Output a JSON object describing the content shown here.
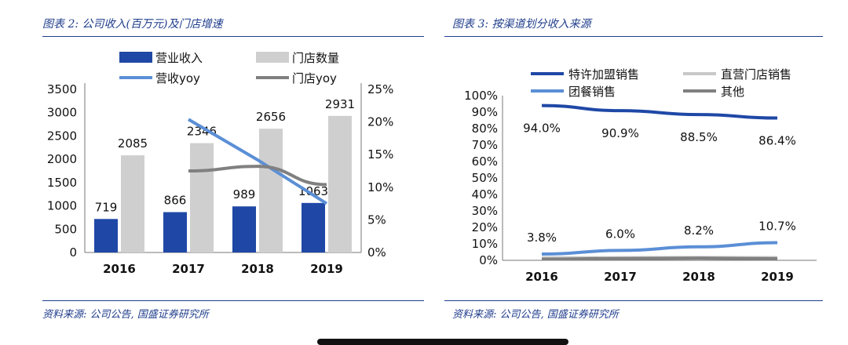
{
  "left": {
    "title": "图表 2:  公司收入(百万元)及门店增速",
    "source": "资料来源:  公司公告,  国盛证券研究所"
  },
  "right": {
    "title": "图表 3:  按渠道划分收入来源",
    "source": "资料来源:  公司公告,  国盛证券研究所"
  },
  "chart_data": [
    {
      "type": "bar",
      "title": "公司收入(百万元)及门店增速",
      "categories": [
        "2016",
        "2017",
        "2018",
        "2019"
      ],
      "series": [
        {
          "name": "营业收入",
          "kind": "bar",
          "axis": "left",
          "color": "#1f48a6",
          "values": [
            719,
            866,
            989,
            1063
          ],
          "labels": [
            "719",
            "866",
            "989",
            "1063"
          ]
        },
        {
          "name": "门店数量",
          "kind": "bar",
          "axis": "left",
          "color": "#cfcfcf",
          "values": [
            2085,
            2346,
            2656,
            2931
          ],
          "labels": [
            "2085",
            "2346",
            "2656",
            "2931"
          ]
        },
        {
          "name": "营收yoy",
          "kind": "line",
          "axis": "right",
          "color": "#5b8fd6",
          "values": [
            null,
            20.4,
            14.2,
            7.5
          ]
        },
        {
          "name": "门店yoy",
          "kind": "line",
          "axis": "right",
          "color": "#808080",
          "values": [
            null,
            12.5,
            13.2,
            10.4
          ]
        }
      ],
      "ylim": [
        0,
        3500
      ],
      "yticks": [
        "0",
        "500",
        "1000",
        "1500",
        "2000",
        "2500",
        "3000",
        "3500"
      ],
      "y2lim": [
        0,
        25
      ],
      "y2ticks": [
        "0%",
        "5%",
        "10%",
        "15%",
        "20%",
        "25%"
      ],
      "legend": "top"
    },
    {
      "type": "line",
      "title": "按渠道划分收入来源",
      "categories": [
        "2016",
        "2017",
        "2018",
        "2019"
      ],
      "series": [
        {
          "name": "特许加盟销售",
          "color": "#1f48a6",
          "values": [
            94.0,
            90.9,
            88.5,
            86.4
          ],
          "labels": [
            "94.0%",
            "90.9%",
            "88.5%",
            "86.4%"
          ]
        },
        {
          "name": "直营门店销售",
          "color": "#c8c8c8",
          "values": [
            1.5,
            1.6,
            1.7,
            1.6
          ],
          "labels": []
        },
        {
          "name": "团餐销售",
          "color": "#5b8fd6",
          "values": [
            3.8,
            6.0,
            8.2,
            10.7
          ],
          "labels": [
            "3.8%",
            "6.0%",
            "8.2%",
            "10.7%"
          ]
        },
        {
          "name": "其他",
          "color": "#808080",
          "values": [
            0.7,
            1.1,
            1.3,
            1.0
          ],
          "labels": []
        }
      ],
      "ylim": [
        0,
        100
      ],
      "yticks": [
        "0%",
        "10%",
        "20%",
        "30%",
        "40%",
        "50%",
        "60%",
        "70%",
        "80%",
        "90%",
        "100%"
      ],
      "legend": "top"
    }
  ]
}
